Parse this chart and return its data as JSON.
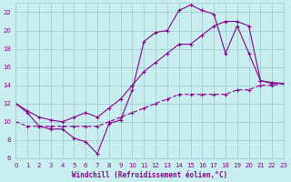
{
  "xlabel": "Windchill (Refroidissement éolien,°C)",
  "background_color": "#c8eef0",
  "grid_color": "#a0ccd8",
  "line_color": "#880088",
  "xlim": [
    0,
    23
  ],
  "ylim": [
    6,
    23
  ],
  "xticks": [
    0,
    1,
    2,
    3,
    4,
    5,
    6,
    7,
    8,
    9,
    10,
    11,
    12,
    13,
    14,
    15,
    16,
    17,
    18,
    19,
    20,
    21,
    22,
    23
  ],
  "yticks": [
    6,
    8,
    10,
    12,
    14,
    16,
    18,
    20,
    22
  ],
  "curve1_x": [
    0,
    1,
    2,
    3,
    4,
    5,
    6,
    7,
    8,
    9,
    10,
    11,
    12,
    13,
    14,
    15,
    16,
    17,
    18,
    19,
    20,
    21,
    22,
    23
  ],
  "curve1_y": [
    12.0,
    11.0,
    9.5,
    9.2,
    9.2,
    8.2,
    7.8,
    6.5,
    9.8,
    10.2,
    13.5,
    18.8,
    19.8,
    20.0,
    22.2,
    22.8,
    22.2,
    21.8,
    17.5,
    20.5,
    17.5,
    14.5,
    14.2,
    14.2
  ],
  "curve2_x": [
    0,
    1,
    2,
    3,
    4,
    5,
    6,
    7,
    8,
    9,
    10,
    11,
    12,
    13,
    14,
    15,
    16,
    17,
    18,
    19,
    20,
    21,
    22,
    23
  ],
  "curve2_y": [
    12.0,
    11.2,
    10.5,
    10.2,
    10.0,
    10.5,
    11.0,
    10.5,
    11.5,
    12.5,
    14.0,
    15.5,
    16.5,
    17.5,
    18.5,
    18.5,
    19.5,
    20.5,
    21.0,
    21.0,
    20.5,
    14.5,
    14.3,
    14.2
  ],
  "curve3_x": [
    0,
    1,
    2,
    3,
    4,
    5,
    6,
    7,
    8,
    9,
    10,
    11,
    12,
    13,
    14,
    15,
    16,
    17,
    18,
    19,
    20,
    21,
    22,
    23
  ],
  "curve3_y": [
    10.0,
    9.5,
    9.5,
    9.5,
    9.5,
    9.5,
    9.5,
    9.5,
    10.0,
    10.5,
    11.0,
    11.5,
    12.0,
    12.5,
    13.0,
    13.0,
    13.0,
    13.0,
    13.0,
    13.5,
    13.5,
    14.0,
    14.0,
    14.2
  ]
}
